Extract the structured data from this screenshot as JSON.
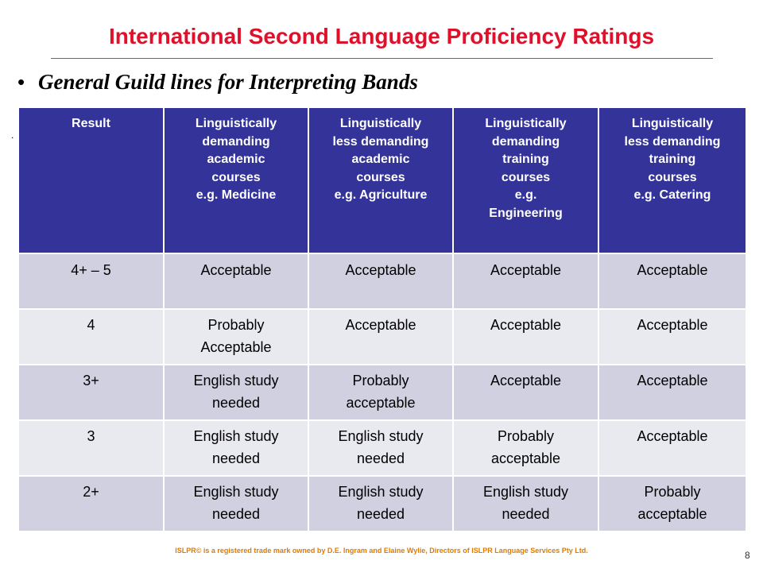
{
  "slide": {
    "title": "International Second Language Proficiency Ratings",
    "bullet_char": "•",
    "bullet_text": "General Guild lines for Interpreting Bands",
    "stray_mark": ".",
    "footer": "ISLPR© is a registered trade mark owned by D.E. Ingram and Elaine Wylie, Directors of ISLPR Language Services Pty Ltd.",
    "page_number": "8"
  },
  "table": {
    "headers": [
      [
        "Result"
      ],
      [
        "Linguistically",
        "demanding",
        "academic",
        "courses",
        "e.g. Medicine"
      ],
      [
        "Linguistically",
        "less demanding",
        "academic",
        "courses",
        "e.g. Agriculture"
      ],
      [
        "Linguistically",
        "demanding",
        "training",
        "courses",
        "e.g.",
        "Engineering"
      ],
      [
        "Linguistically",
        "less demanding",
        "training",
        "courses",
        "e.g. Catering"
      ]
    ],
    "rows": [
      [
        [
          "4+ – 5"
        ],
        [
          "Acceptable"
        ],
        [
          "Acceptable"
        ],
        [
          "Acceptable"
        ],
        [
          "Acceptable"
        ]
      ],
      [
        [
          "4"
        ],
        [
          "Probably",
          "Acceptable"
        ],
        [
          "Acceptable"
        ],
        [
          "Acceptable"
        ],
        [
          "Acceptable"
        ]
      ],
      [
        [
          "3+"
        ],
        [
          "English study",
          "needed"
        ],
        [
          "Probably",
          "acceptable"
        ],
        [
          "Acceptable"
        ],
        [
          "Acceptable"
        ]
      ],
      [
        [
          "3"
        ],
        [
          "English study",
          "needed"
        ],
        [
          "English study",
          "needed"
        ],
        [
          "Probably",
          "acceptable"
        ],
        [
          "Acceptable"
        ]
      ],
      [
        [
          "2+"
        ],
        [
          "English study",
          "needed"
        ],
        [
          "English study",
          "needed"
        ],
        [
          "English study",
          "needed"
        ],
        [
          "Probably",
          "acceptable"
        ]
      ]
    ],
    "colors": {
      "header_bg": "#333399",
      "row_dark": "#d0d0e0",
      "row_light": "#e9e9f0",
      "title": "#e0102b"
    }
  }
}
